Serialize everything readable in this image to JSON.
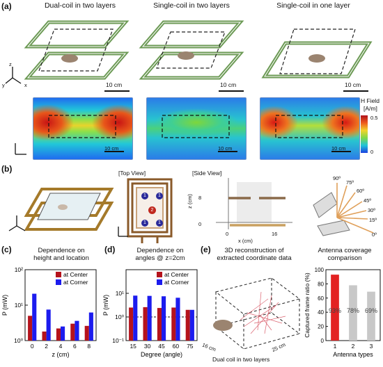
{
  "figure": {
    "panel_a": {
      "label": "(a)",
      "titles": [
        "Dual-coil in two layers",
        "Single-coil in two layers",
        "Single-coil in one layer"
      ],
      "scale": "10 cm",
      "colorbar": {
        "title": "H Field",
        "unit": "[A/m]",
        "max": "0.5",
        "min": "0"
      },
      "axes": {
        "z": "z",
        "y": "y",
        "x": "x"
      }
    },
    "panel_b": {
      "label": "(b)",
      "top_view_title": "[Top View]",
      "side_view_title": "[Side View]",
      "side_view": {
        "ylabel": "z (cm)",
        "xlabel": "x (cm)",
        "yticks": [
          "8",
          "0"
        ],
        "xticks": [
          "0",
          "16"
        ]
      },
      "markers": [
        "1",
        "1",
        "1",
        "1",
        "2"
      ],
      "angles": [
        "90º",
        "75º",
        "60º",
        "45º",
        "30º",
        "15º",
        "0º"
      ],
      "axes": {
        "z": "z",
        "y": "y",
        "x": "x"
      }
    },
    "panel_c": {
      "label": "(c)",
      "title_lines": [
        "Dependence on",
        "height and location"
      ]
    },
    "panel_d": {
      "label": "(d)",
      "title_lines": [
        "Dependence on",
        "angles @ z=2cm"
      ]
    },
    "panel_e": {
      "label": "(e)",
      "recon_title_lines": [
        "3D reconstruction of",
        "extracted coordinate data"
      ],
      "dim1": "16 cm",
      "dim2": "25 cm",
      "caption": "Dual coil in two layers",
      "coverage_title_lines": [
        "Antenna coverage",
        "comparison"
      ]
    }
  },
  "chart_data": [
    {
      "id": "panel_c",
      "type": "bar",
      "title": "Dependence on height and location",
      "xlabel": "z (cm)",
      "ylabel": "P (mW)",
      "yscale": "log",
      "ylim": [
        1,
        100
      ],
      "ytick_labels": [
        "10⁰",
        "10¹",
        "10²"
      ],
      "categories": [
        "0",
        "2",
        "4",
        "6",
        "8"
      ],
      "series": [
        {
          "name": "at Center",
          "color": "#b5131c",
          "values": [
            5,
            1.8,
            2.2,
            3.0,
            2.6
          ]
        },
        {
          "name": "at Corner",
          "color": "#1c1cee",
          "values": [
            21,
            7.5,
            2.5,
            3.6,
            6.2
          ]
        }
      ],
      "reference_line": 1,
      "legend": "top-right"
    },
    {
      "id": "panel_d",
      "type": "bar",
      "title": "Dependence on angles @ z=2cm",
      "xlabel": "Degree (angle)",
      "ylabel": "P (mW)",
      "yscale": "log",
      "ylim": [
        0.1,
        100
      ],
      "ytick_labels": [
        "10⁻¹",
        "10⁰",
        "10¹"
      ],
      "categories": [
        "15",
        "30",
        "45",
        "60",
        "75"
      ],
      "series": [
        {
          "name": "at Center",
          "color": "#b5131c",
          "values": [
            2.5,
            2.6,
            2.4,
            2.5,
            2.0
          ]
        },
        {
          "name": "at Corner",
          "color": "#1c1cee",
          "values": [
            8.0,
            7.8,
            7.5,
            6.5,
            2.0
          ]
        }
      ],
      "reference_line": 1,
      "legend": "top-right"
    },
    {
      "id": "panel_e",
      "type": "bar",
      "title": "Antenna coverage comparison",
      "xlabel": "Antenna types",
      "ylabel": "Captured frame ratio (%)",
      "ylim": [
        0,
        100
      ],
      "yticks": [
        0,
        20,
        40,
        60,
        80,
        100
      ],
      "categories": [
        "1",
        "2",
        "3"
      ],
      "values": [
        93,
        78,
        69
      ],
      "value_labels": [
        "93%",
        "78%",
        "69%"
      ],
      "colors": [
        "#e32222",
        "#c8c8c8",
        "#c8c8c8"
      ]
    }
  ]
}
